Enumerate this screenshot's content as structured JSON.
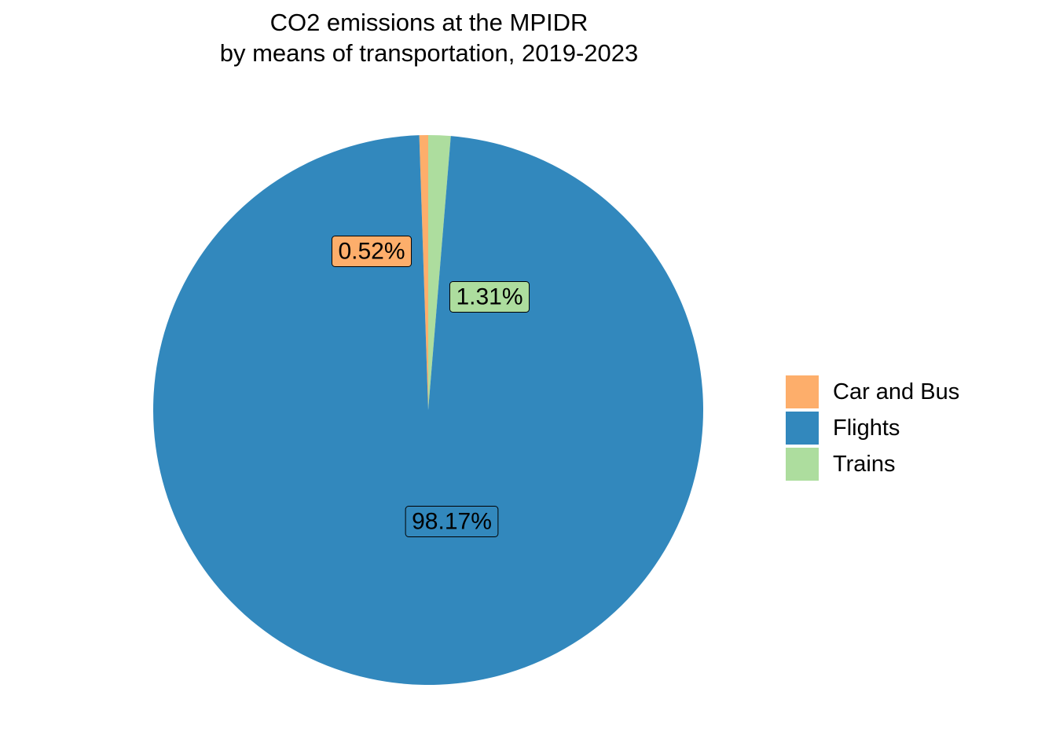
{
  "chart_data": {
    "type": "pie",
    "title": "CO2 emissions at the MPIDR",
    "subtitle": "by means of transportation, 2019-2023",
    "slices": [
      {
        "name": "Car and Bus",
        "value": 0.52,
        "label": "0.52%",
        "color": "#fdae6b"
      },
      {
        "name": "Trains",
        "value": 1.31,
        "label": "1.31%",
        "color": "#addd9e"
      },
      {
        "name": "Flights",
        "value": 98.17,
        "label": "98.17%",
        "color": "#3288bd"
      }
    ],
    "legend": {
      "placement": "right",
      "items": [
        {
          "name": "Car and Bus",
          "color": "#fdae6b"
        },
        {
          "name": "Flights",
          "color": "#3288bd"
        },
        {
          "name": "Trains",
          "color": "#addd9e"
        }
      ]
    }
  }
}
